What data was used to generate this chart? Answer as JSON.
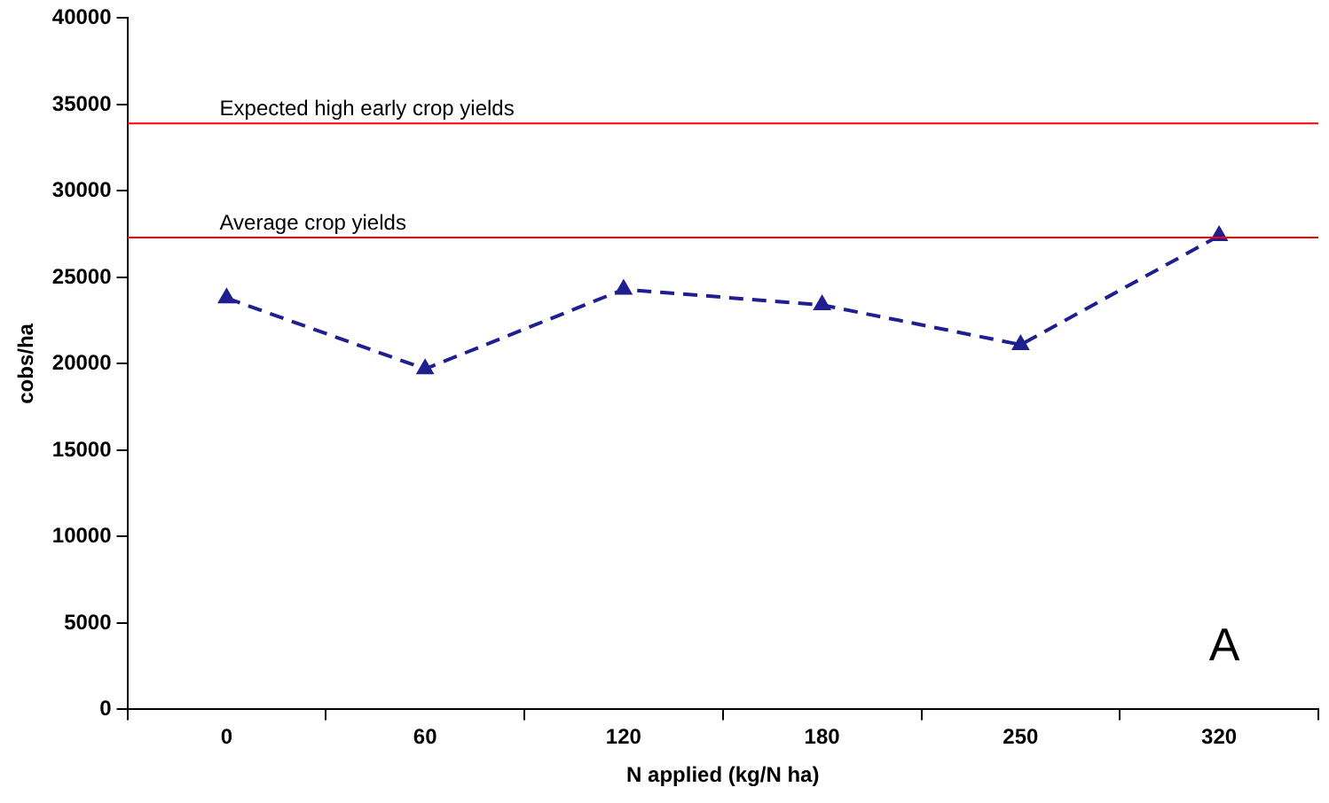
{
  "chart_data": {
    "type": "line",
    "xlabel": "N applied (kg/N ha)",
    "ylabel": "cobs/ha",
    "categories": [
      "0",
      "60",
      "120",
      "180",
      "250",
      "320"
    ],
    "series": [
      {
        "color": "#1f1f8f",
        "values": [
          23800,
          19700,
          24300,
          23400,
          21100,
          27400
        ]
      }
    ],
    "ylim": [
      0,
      40000
    ],
    "yticks": [
      0,
      5000,
      10000,
      15000,
      20000,
      25000,
      30000,
      35000,
      40000
    ],
    "grid": false,
    "legend": false,
    "marker": "triangle",
    "line_style": "dashed",
    "ref_lines": [
      {
        "axis": "y",
        "value": 33900,
        "label": "Expected high early crop yields",
        "color": "#ff0000"
      },
      {
        "axis": "y",
        "value": 27300,
        "label": "Average crop yields",
        "color": "#ff0000"
      }
    ],
    "annotations": [
      "A"
    ]
  }
}
